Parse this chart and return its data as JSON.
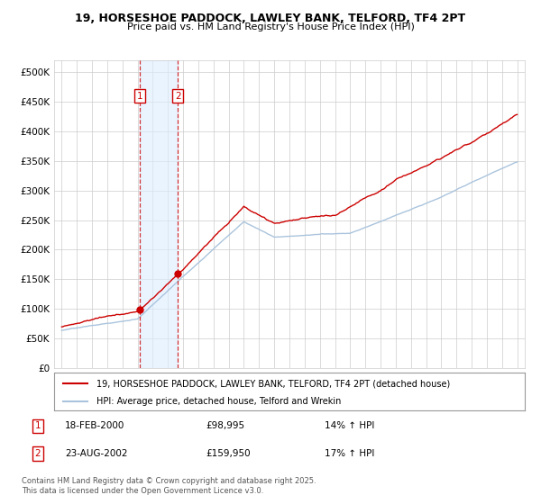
{
  "title": "19, HORSESHOE PADDOCK, LAWLEY BANK, TELFORD, TF4 2PT",
  "subtitle": "Price paid vs. HM Land Registry's House Price Index (HPI)",
  "legend_property": "19, HORSESHOE PADDOCK, LAWLEY BANK, TELFORD, TF4 2PT (detached house)",
  "legend_hpi": "HPI: Average price, detached house, Telford and Wrekin",
  "transactions": [
    {
      "label": "1",
      "date": "18-FEB-2000",
      "price": 98995,
      "hpi_pct": "14% ↑ HPI",
      "year": 2000.13
    },
    {
      "label": "2",
      "date": "23-AUG-2002",
      "price": 159950,
      "hpi_pct": "17% ↑ HPI",
      "year": 2002.64
    }
  ],
  "footnote1": "Contains HM Land Registry data © Crown copyright and database right 2025.",
  "footnote2": "This data is licensed under the Open Government Licence v3.0.",
  "ylabel_ticks": [
    0,
    50000,
    100000,
    150000,
    200000,
    250000,
    300000,
    350000,
    400000,
    450000,
    500000
  ],
  "ylabel_labels": [
    "£0",
    "£50K",
    "£100K",
    "£150K",
    "£200K",
    "£250K",
    "£300K",
    "£350K",
    "£400K",
    "£450K",
    "£500K"
  ],
  "color_property": "#cc0000",
  "color_hpi": "#aac4dd",
  "shade_color": "#ddeeff",
  "marker_box_color": "#cc0000",
  "background_color": "#ffffff",
  "grid_color": "#cccccc",
  "t1_year": 2000.13,
  "t2_year": 2002.64,
  "t1_price": 98995,
  "t2_price": 159950,
  "ylim": [
    0,
    520000
  ],
  "xlim": [
    1994.5,
    2025.5
  ]
}
